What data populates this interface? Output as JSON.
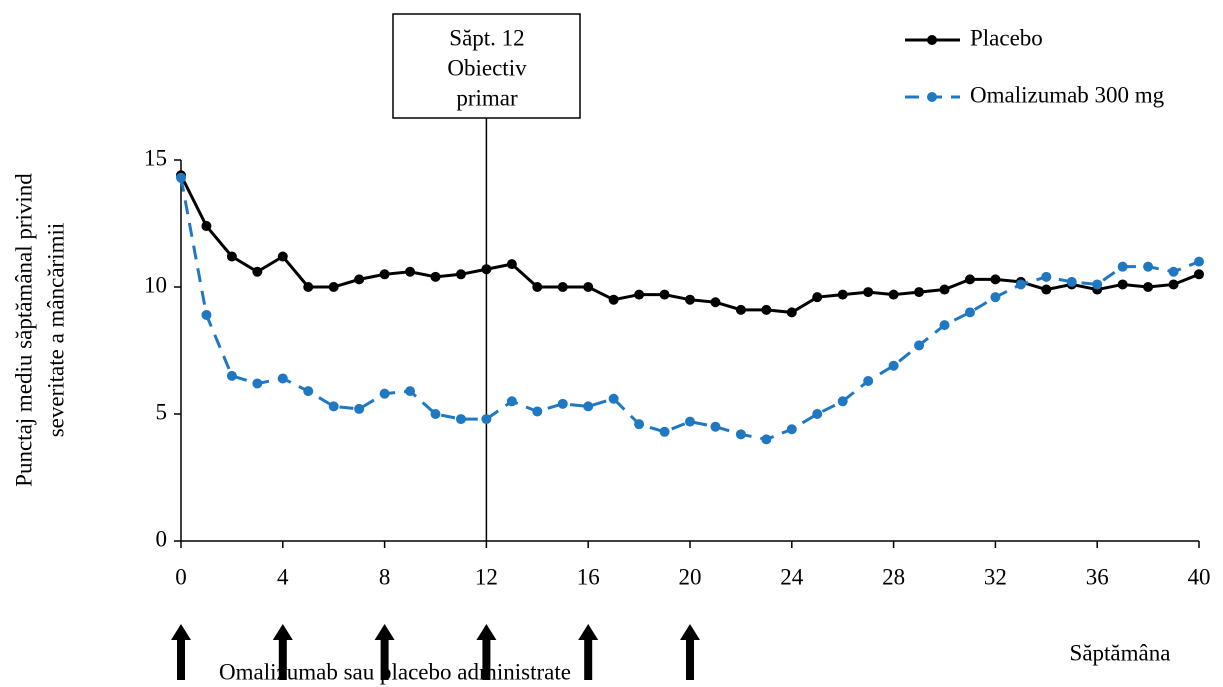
{
  "chart_data": {
    "type": "line",
    "annotation": [
      "Săpt. 12",
      "Obiectiv",
      "primar"
    ],
    "annotation_x": 12,
    "ylabel": [
      "Punctaj mediu săptămânal privind",
      "severitate a mâncărimii"
    ],
    "xlabel": "Săptămâna",
    "dose_caption": "Omalizumab sau placebo administrate",
    "dose_weeks": [
      0,
      4,
      8,
      12,
      16,
      20
    ],
    "xlim": [
      0,
      40
    ],
    "xticks": [
      0,
      4,
      8,
      12,
      16,
      20,
      24,
      28,
      32,
      36,
      40
    ],
    "ylim": [
      0,
      15
    ],
    "yticks": [
      0,
      5,
      10,
      15
    ],
    "x": [
      0,
      1,
      2,
      3,
      4,
      5,
      6,
      7,
      8,
      9,
      10,
      11,
      12,
      13,
      14,
      15,
      16,
      17,
      18,
      19,
      20,
      21,
      22,
      23,
      24,
      25,
      26,
      27,
      28,
      29,
      30,
      31,
      32,
      33,
      34,
      35,
      36,
      37,
      38,
      39,
      40
    ],
    "series": [
      {
        "name": "Placebo",
        "color": "#000000",
        "dash": false,
        "values": [
          14.4,
          12.4,
          11.2,
          10.6,
          11.2,
          10.0,
          10.0,
          10.3,
          10.5,
          10.6,
          10.4,
          10.5,
          10.7,
          10.9,
          10.0,
          10.0,
          10.0,
          9.5,
          9.7,
          9.7,
          9.5,
          9.4,
          9.1,
          9.1,
          9.0,
          9.6,
          9.7,
          9.8,
          9.7,
          9.8,
          9.9,
          10.3,
          10.3,
          10.2,
          9.9,
          10.1,
          9.9,
          10.1,
          10.0,
          10.1,
          10.5
        ]
      },
      {
        "name": "Omalizumab 300 mg",
        "color": "#1f78c1",
        "dash": true,
        "values": [
          14.3,
          8.9,
          6.5,
          6.2,
          6.4,
          5.9,
          5.3,
          5.2,
          5.8,
          5.9,
          5.0,
          4.8,
          4.8,
          5.5,
          5.1,
          5.4,
          5.3,
          5.6,
          4.6,
          4.3,
          4.7,
          4.5,
          4.2,
          4.0,
          4.4,
          5.0,
          5.5,
          6.3,
          6.9,
          7.7,
          8.5,
          9.0,
          9.6,
          10.1,
          10.4,
          10.2,
          10.1,
          10.8,
          10.8,
          10.6,
          11.0
        ]
      }
    ]
  }
}
